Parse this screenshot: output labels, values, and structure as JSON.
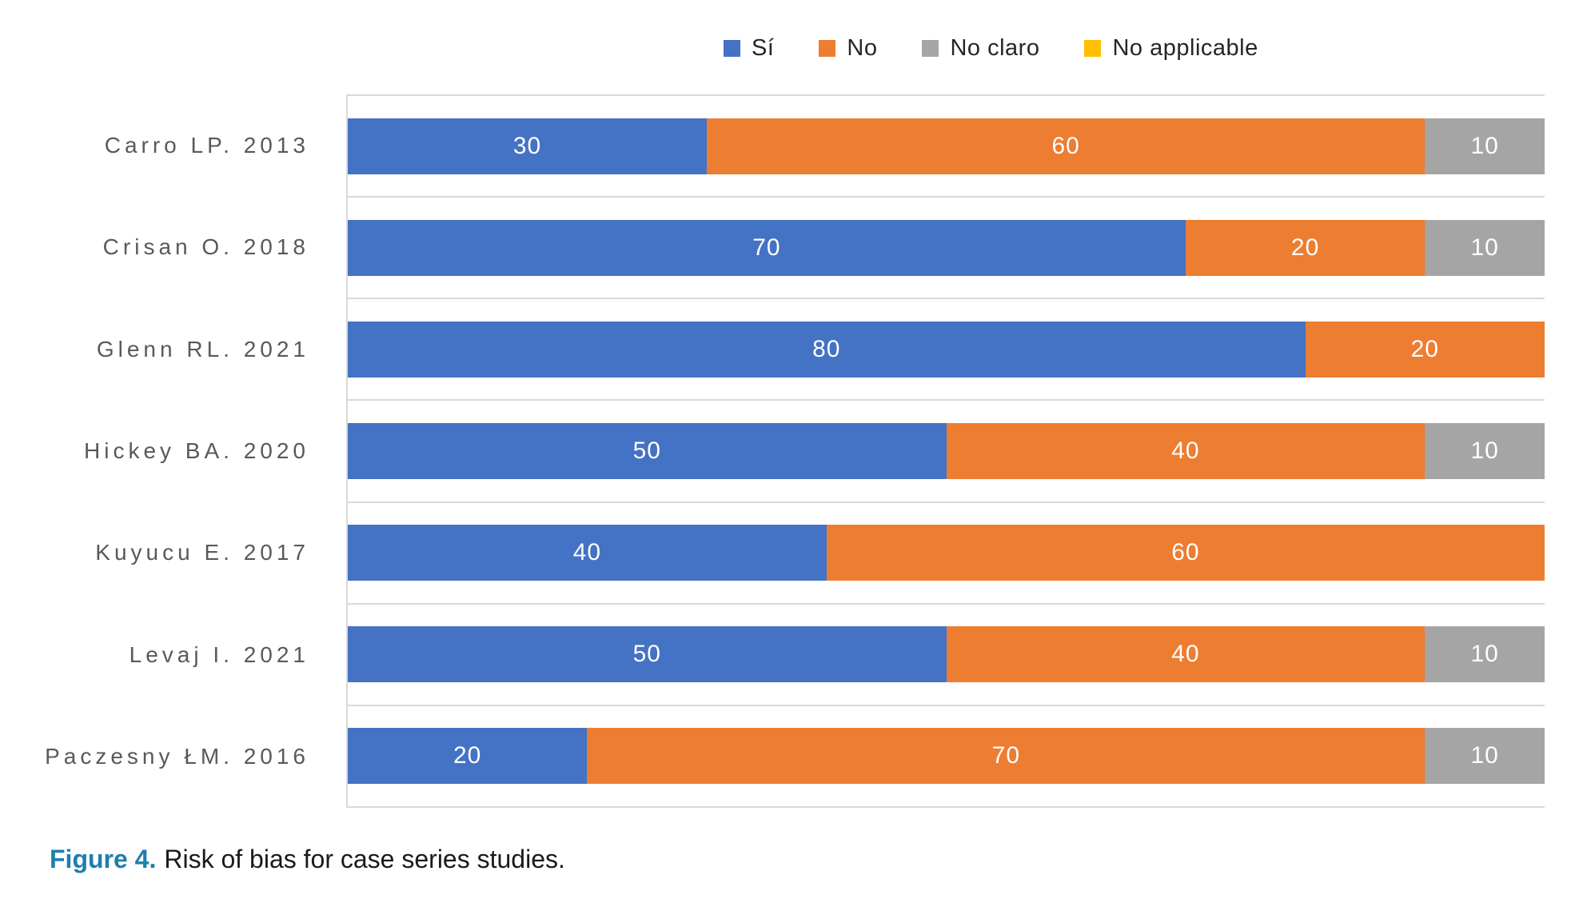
{
  "legend": {
    "position": "top",
    "items": [
      {
        "label": "Sí",
        "color": "#4472C4"
      },
      {
        "label": "No",
        "color": "#ED7D31"
      },
      {
        "label": "No claro",
        "color": "#A5A5A5"
      },
      {
        "label": "No applicable",
        "color": "#FFC000"
      }
    ]
  },
  "chart_data": {
    "type": "bar",
    "subtype": "horizontal-stacked",
    "categories": [
      "Carro LP. 2013",
      "Crisan O. 2018",
      "Glenn RL. 2021",
      "Hickey BA. 2020",
      "Kuyucu E. 2017",
      "Levaj I. 2021",
      "Paczesny ŁM. 2016"
    ],
    "series": [
      {
        "name": "Sí",
        "color": "#4472C4",
        "values": [
          30,
          70,
          80,
          50,
          40,
          50,
          20
        ]
      },
      {
        "name": "No",
        "color": "#ED7D31",
        "values": [
          60,
          20,
          20,
          40,
          60,
          40,
          70
        ]
      },
      {
        "name": "No claro",
        "color": "#A5A5A5",
        "values": [
          10,
          10,
          0,
          10,
          0,
          10,
          10
        ]
      },
      {
        "name": "No applicable",
        "color": "#FFC000",
        "values": [
          0,
          0,
          0,
          0,
          0,
          0,
          0
        ]
      }
    ],
    "x_range": [
      0,
      100
    ],
    "data_labels": "shown-inside-segments",
    "gridlines": "horizontal-band-separators",
    "legend_position": "top"
  },
  "caption": {
    "figure_label": "Figure 4.",
    "text": "Risk of bias for case series studies."
  },
  "colors": {
    "gridline": "#D9D9D9",
    "category_label_text": "#595959",
    "bar_value_text": "#FFFFFF",
    "legend_text": "#262626",
    "caption_accent": "#1F7FAD",
    "caption_text": "#1A1A1A",
    "background": "#FFFFFF"
  }
}
